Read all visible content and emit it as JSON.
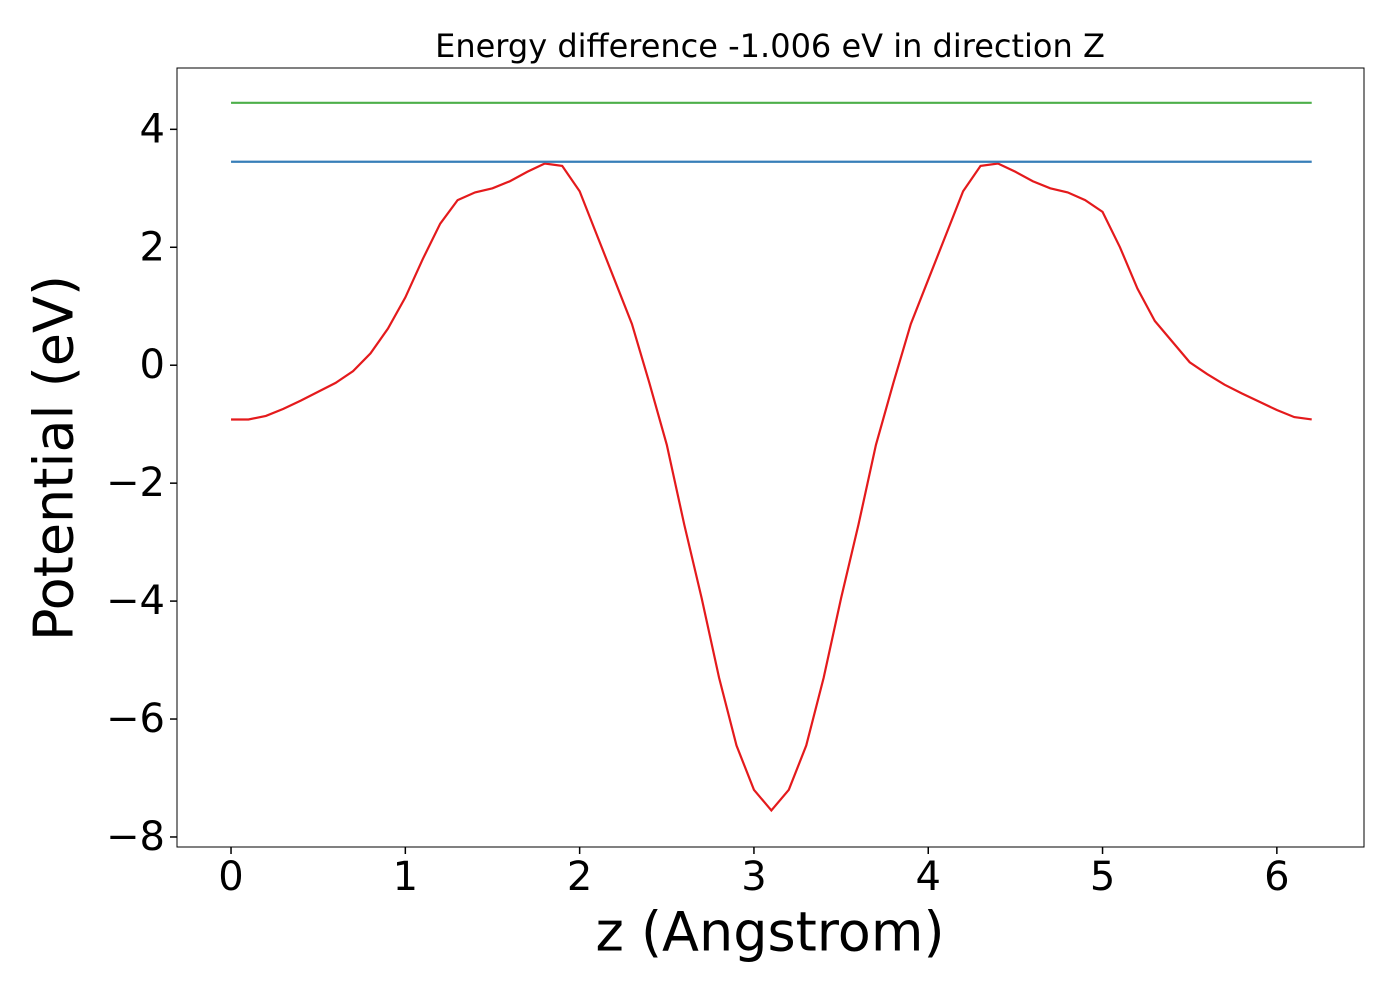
{
  "chart_data": {
    "type": "line",
    "title": "Energy difference -1.006 eV in direction Z",
    "xlabel": "z (Angstrom)",
    "ylabel": "Potential (eV)",
    "x": [
      0.0,
      0.1,
      0.2,
      0.3,
      0.4,
      0.5,
      0.6,
      0.7,
      0.8,
      0.9,
      1.0,
      1.1,
      1.2,
      1.3,
      1.4,
      1.5,
      1.6,
      1.7,
      1.8,
      1.9,
      2.0,
      2.1,
      2.2,
      2.3,
      2.4,
      2.5,
      2.6,
      2.7,
      2.8,
      2.9,
      3.0,
      3.1,
      3.2,
      3.3,
      3.4,
      3.5,
      3.6,
      3.7,
      3.8,
      3.9,
      4.0,
      4.1,
      4.2,
      4.3,
      4.4,
      4.5,
      4.6,
      4.7,
      4.8,
      4.9,
      5.0,
      5.1,
      5.2,
      5.3,
      5.4,
      5.5,
      5.6,
      5.7,
      5.8,
      5.9,
      6.0,
      6.1,
      6.2
    ],
    "series": [
      {
        "color": "#e41a1c",
        "values": [
          -0.92,
          -0.92,
          -0.86,
          -0.74,
          -0.6,
          -0.45,
          -0.3,
          -0.1,
          0.2,
          0.62,
          1.15,
          1.8,
          2.4,
          2.8,
          2.93,
          3.0,
          3.12,
          3.28,
          3.42,
          3.38,
          2.95,
          2.2,
          1.45,
          0.7,
          -0.3,
          -1.35,
          -2.7,
          -3.95,
          -5.3,
          -6.45,
          -7.2,
          -7.55,
          -7.2,
          -6.45,
          -5.3,
          -3.95,
          -2.7,
          -1.35,
          -0.3,
          0.7,
          1.45,
          2.2,
          2.95,
          3.38,
          3.42,
          3.28,
          3.12,
          3.0,
          2.93,
          2.8,
          2.6,
          2.0,
          1.3,
          0.75,
          0.4,
          0.05,
          -0.15,
          -0.33,
          -0.48,
          -0.62,
          -0.76,
          -0.88,
          -0.92
        ]
      },
      {
        "color": "#377eb8",
        "values": [
          3.45,
          3.45,
          3.45,
          3.45,
          3.45,
          3.45,
          3.45,
          3.45,
          3.45,
          3.45,
          3.45,
          3.45,
          3.45,
          3.45,
          3.45,
          3.45,
          3.45,
          3.45,
          3.45,
          3.45,
          3.45,
          3.45,
          3.45,
          3.45,
          3.45,
          3.45,
          3.45,
          3.45,
          3.45,
          3.45,
          3.45,
          3.45,
          3.45,
          3.45,
          3.45,
          3.45,
          3.45,
          3.45,
          3.45,
          3.45,
          3.45,
          3.45,
          3.45,
          3.45,
          3.45,
          3.45,
          3.45,
          3.45,
          3.45,
          3.45,
          3.45,
          3.45,
          3.45,
          3.45,
          3.45,
          3.45,
          3.45,
          3.45,
          3.45,
          3.45,
          3.45,
          3.45,
          3.45
        ]
      },
      {
        "color": "#4daf4a",
        "values": [
          4.45,
          4.45,
          4.45,
          4.45,
          4.45,
          4.45,
          4.45,
          4.45,
          4.45,
          4.45,
          4.45,
          4.45,
          4.45,
          4.45,
          4.45,
          4.45,
          4.45,
          4.45,
          4.45,
          4.45,
          4.45,
          4.45,
          4.45,
          4.45,
          4.45,
          4.45,
          4.45,
          4.45,
          4.45,
          4.45,
          4.45,
          4.45,
          4.45,
          4.45,
          4.45,
          4.45,
          4.45,
          4.45,
          4.45,
          4.45,
          4.45,
          4.45,
          4.45,
          4.45,
          4.45,
          4.45,
          4.45,
          4.45,
          4.45,
          4.45,
          4.45,
          4.45,
          4.45,
          4.45,
          4.45,
          4.45,
          4.45,
          4.45,
          4.45,
          4.45,
          4.45,
          4.45,
          4.45
        ]
      }
    ],
    "xlim": [
      -0.31,
      6.5
    ],
    "ylim": [
      -8.17,
      5.04
    ],
    "xticks": [
      0,
      1,
      2,
      3,
      4,
      5,
      6
    ],
    "yticks": [
      {
        "value": -8,
        "label": "−8"
      },
      {
        "value": -6,
        "label": "−6"
      },
      {
        "value": -4,
        "label": "−4"
      },
      {
        "value": -2,
        "label": "−2"
      },
      0,
      2,
      4
    ]
  }
}
